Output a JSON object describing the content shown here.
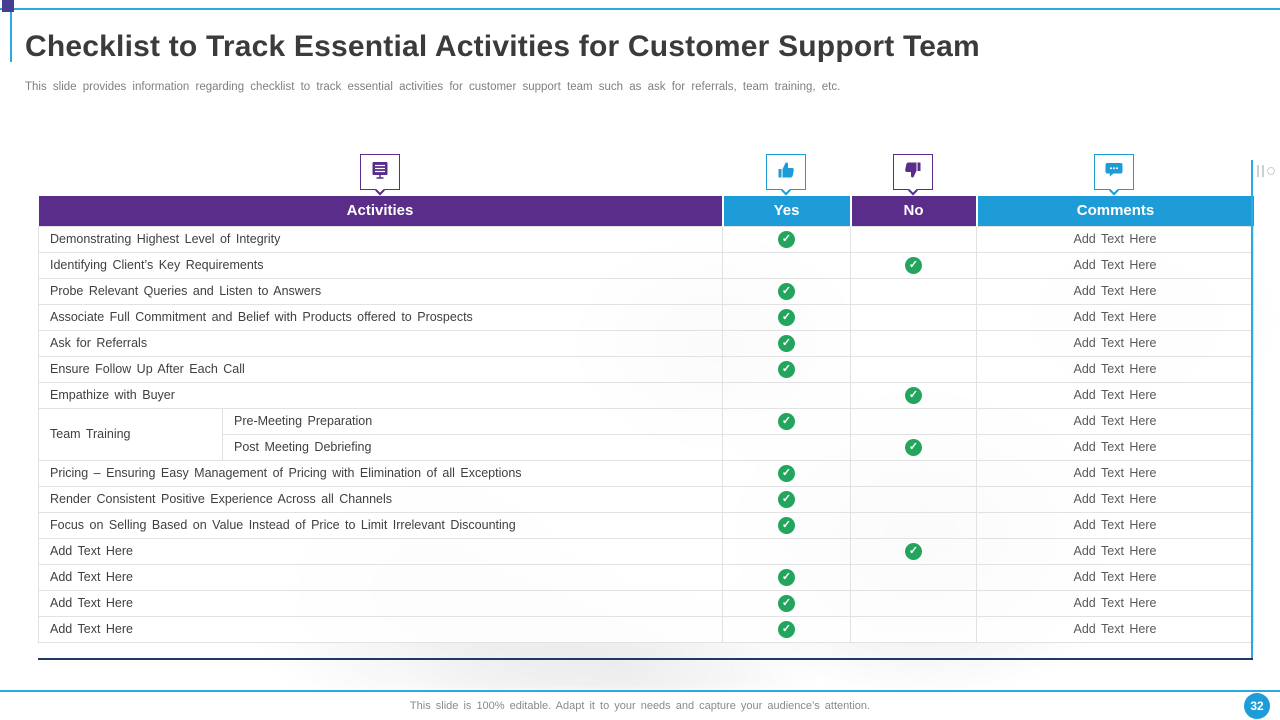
{
  "slide": {
    "title": "Checklist to Track Essential Activities for Customer Support Team",
    "subtitle": "This slide provides information regarding checklist to track essential activities for customer support team such as ask for referrals, team training, etc.",
    "footer": "This slide is 100% editable. Adapt it to your needs and capture your audience’s attention.",
    "page_number": "32"
  },
  "colors": {
    "purple": "#5b2d8a",
    "blue": "#1e9cd8",
    "light_blue": "#29abe2",
    "navy": "#1f3864",
    "green": "#23a55e"
  },
  "icons": {
    "check": "✓",
    "header_icons": [
      "checklist-icon",
      "thumbs-up-icon",
      "thumbs-down-icon",
      "comment-icon"
    ]
  },
  "table": {
    "headers": [
      {
        "label": "Activities"
      },
      {
        "label": "Yes"
      },
      {
        "label": "No"
      },
      {
        "label": "Comments"
      }
    ],
    "rows": [
      {
        "activity": "Demonstrating Highest Level of Integrity",
        "check": "yes",
        "comment": "Add Text Here"
      },
      {
        "activity": "Identifying Client’s Key Requirements",
        "check": "no",
        "comment": "Add Text Here"
      },
      {
        "activity": "Probe Relevant Queries and Listen to Answers",
        "check": "yes",
        "comment": "Add Text Here"
      },
      {
        "activity": "Associate Full Commitment and Belief with Products offered to Prospects",
        "check": "yes",
        "comment": "Add Text Here"
      },
      {
        "activity": "Ask for Referrals",
        "check": "yes",
        "comment": "Add Text Here"
      },
      {
        "activity": "Ensure Follow Up After Each Call",
        "check": "yes",
        "comment": "Add Text Here"
      },
      {
        "activity": "Empathize with Buyer",
        "check": "no",
        "comment": "Add Text Here"
      },
      {
        "group": "Team Training",
        "rows_spanned": 2,
        "activity": "Pre-Meeting Preparation",
        "check": "yes",
        "comment": "Add Text Here"
      },
      {
        "in_group": true,
        "activity": "Post Meeting Debriefing",
        "check": "no",
        "comment": "Add Text Here"
      },
      {
        "activity": "Pricing – Ensuring Easy Management of Pricing with Elimination of all Exceptions",
        "check": "yes",
        "comment": "Add Text Here"
      },
      {
        "activity": "Render Consistent Positive Experience Across all Channels",
        "check": "yes",
        "comment": "Add Text Here"
      },
      {
        "activity": "Focus on Selling Based on Value Instead of Price to Limit Irrelevant Discounting",
        "check": "yes",
        "comment": "Add Text Here"
      },
      {
        "activity": "Add Text Here",
        "check": "no",
        "comment": "Add Text Here"
      },
      {
        "activity": "Add Text Here",
        "check": "yes",
        "comment": "Add Text Here"
      },
      {
        "activity": "Add Text Here",
        "check": "yes",
        "comment": "Add Text Here"
      },
      {
        "activity": "Add Text Here",
        "check": "yes",
        "comment": "Add Text Here"
      }
    ]
  }
}
